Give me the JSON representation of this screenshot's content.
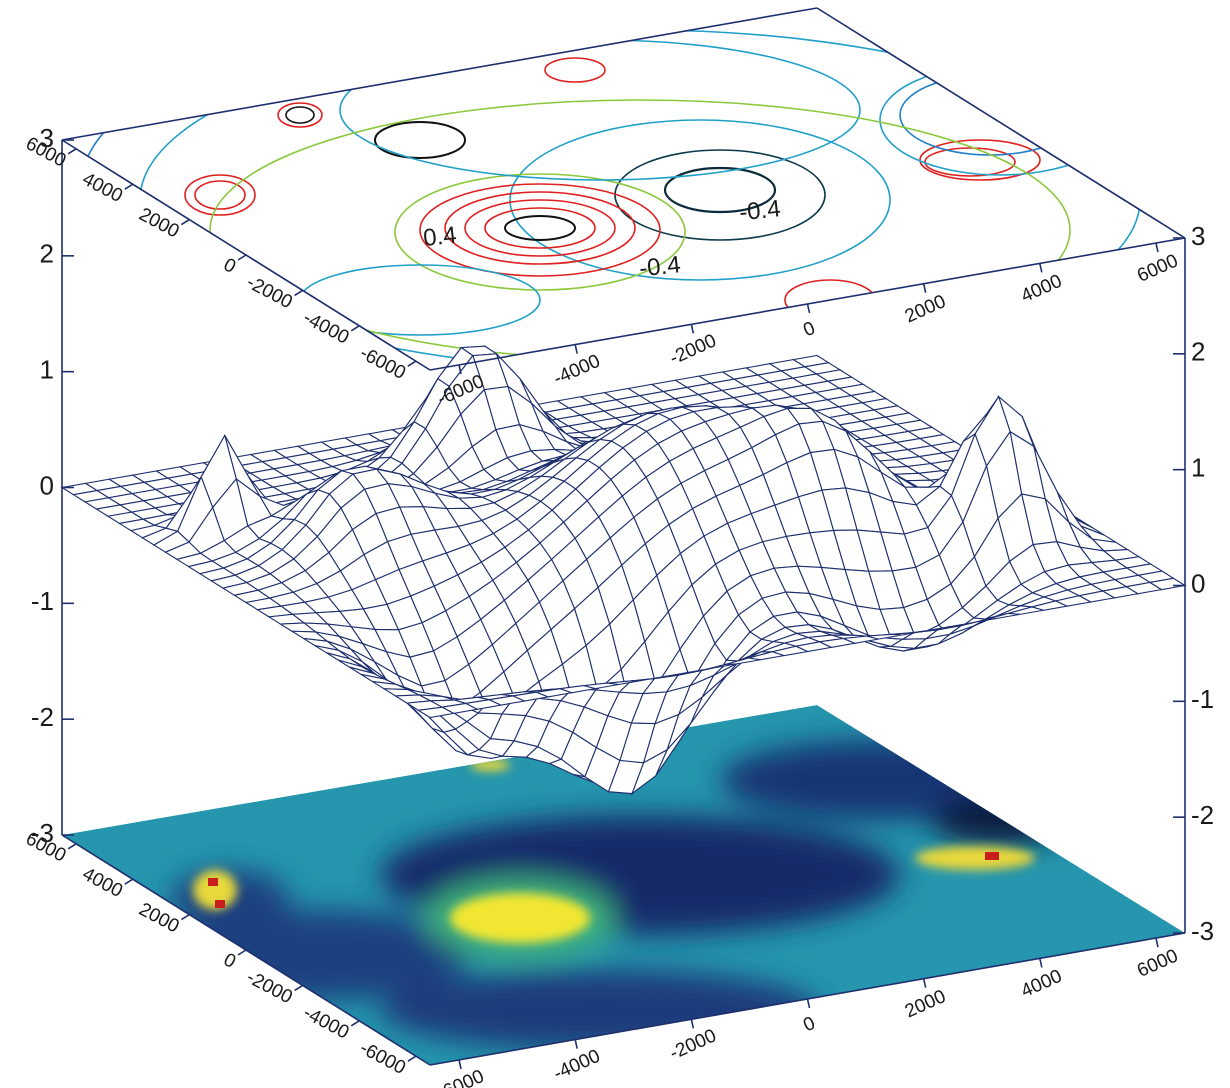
{
  "chart_data": {
    "type": "surface",
    "xlim": [
      -6500,
      6500
    ],
    "ylim": [
      -6500,
      6500
    ],
    "zlim": [
      -3,
      3
    ],
    "xticks": [
      -6000,
      -4000,
      -2000,
      0,
      2000,
      4000,
      6000
    ],
    "yticks": [
      -6000,
      -4000,
      -2000,
      0,
      2000,
      4000,
      6000
    ],
    "zticks": [
      -3,
      -2,
      -1,
      0,
      1,
      2,
      3
    ],
    "contour_labels": [
      "-0.4",
      "0.4",
      "-0.4"
    ],
    "axis_color": "#1e2f6e",
    "mesh_color": "#1e2f6e"
  }
}
